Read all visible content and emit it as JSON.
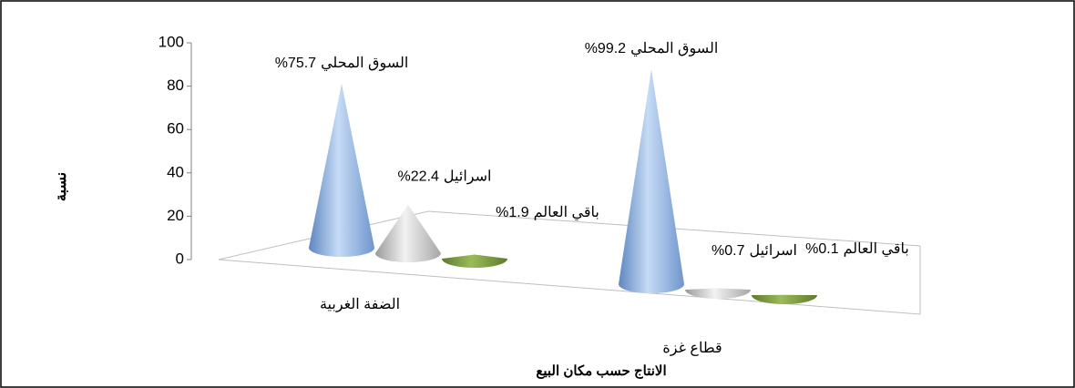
{
  "chart_data": {
    "type": "cone3d",
    "x_label": "الانتاج حسب مكان البيع",
    "y_label": "نسبة",
    "categories": [
      "الضفة الغربية",
      "قطاع غزة"
    ],
    "series": [
      {
        "name": "السوق المحلي",
        "color": "#8db3e2",
        "values": [
          75.7,
          99.2
        ],
        "value_labels": [
          "%75.7",
          "%99.2"
        ]
      },
      {
        "name": "اسرائيل",
        "color": "#bfbfbf",
        "values": [
          22.4,
          0.7
        ],
        "value_labels": [
          "%22.4",
          "%0.7"
        ]
      },
      {
        "name": "باقي العالم",
        "color": "#77933c",
        "values": [
          1.9,
          0.1
        ],
        "value_labels": [
          "%1.9",
          "%0.1"
        ]
      }
    ],
    "ylim": [
      0,
      100
    ],
    "yticks": [
      0,
      20,
      40,
      60,
      80,
      100
    ]
  }
}
